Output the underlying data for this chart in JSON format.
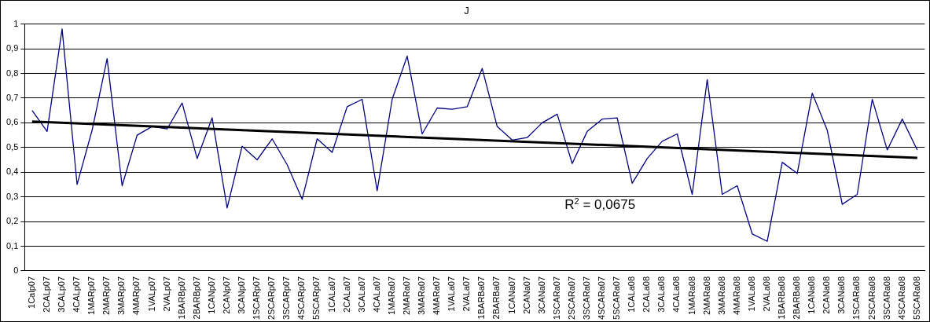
{
  "chart_data": {
    "type": "line",
    "title": "J",
    "categories": [
      "1Calp07",
      "2CALp07",
      "3CALp07",
      "4CALp07",
      "1MARp07",
      "2MARp07",
      "3MARp07",
      "4MARp07",
      "1VALp07",
      "2VALp07",
      "1BARBp07",
      "2BARBp07",
      "1CANp07",
      "2CANp07",
      "3CANp07",
      "1SCARp07",
      "2SCARp07",
      "3SCARp07",
      "4SCARp07",
      "5SCARp07",
      "1CALa07",
      "2CALa07",
      "3CALa07",
      "4CALa07",
      "1MARa07",
      "2MARa07",
      "3MARa07",
      "4MARa07",
      "1VALa07",
      "2VALa07",
      "1BARBa07",
      "2BARBa07",
      "1CANa07",
      "2CANa07",
      "3CANa07",
      "1SCARa07",
      "2SCARa07",
      "3SCARa07",
      "4SCARa07",
      "5SCARa07",
      "1CALa08",
      "2CALa08",
      "3CALa08",
      "4CALa08",
      "1MARa08",
      "2MARa08",
      "3MARa08",
      "4MARa08",
      "1VALa08",
      "2VALa08",
      "1BARBa08",
      "2BARBa08",
      "1CANa08",
      "2CANa08",
      "3CANa08",
      "1SCARa08",
      "2SCARa08",
      "3SCARa08",
      "4SCARa08",
      "5SCARa08"
    ],
    "series": [
      {
        "color": "#000080",
        "values": [
          0.65,
          0.565,
          0.98,
          0.35,
          0.57,
          0.86,
          0.345,
          0.55,
          0.585,
          0.575,
          0.68,
          0.455,
          0.62,
          0.255,
          0.505,
          0.45,
          0.535,
          0.43,
          0.29,
          0.535,
          0.48,
          0.665,
          0.695,
          0.325,
          0.695,
          0.87,
          0.555,
          0.66,
          0.655,
          0.665,
          0.82,
          0.585,
          0.53,
          0.54,
          0.6,
          0.635,
          0.435,
          0.565,
          0.615,
          0.62,
          0.355,
          0.455,
          0.525,
          0.555,
          0.31,
          0.775,
          0.31,
          0.345,
          0.15,
          0.12,
          0.44,
          0.395,
          0.72,
          0.57,
          0.27,
          0.31,
          0.695,
          0.49,
          0.615,
          0.49
        ]
      },
      {
        "type": "line",
        "color": "#000000",
        "values": [
          0.605,
          null,
          null,
          null,
          null,
          null,
          null,
          null,
          null,
          null,
          null,
          null,
          null,
          null,
          null,
          null,
          null,
          null,
          null,
          null,
          null,
          null,
          null,
          null,
          null,
          null,
          null,
          null,
          null,
          null,
          null,
          null,
          null,
          null,
          null,
          null,
          null,
          null,
          null,
          null,
          null,
          null,
          null,
          null,
          null,
          null,
          null,
          null,
          null,
          null,
          null,
          null,
          null,
          null,
          null,
          null,
          null,
          null,
          null,
          0.458
        ]
      }
    ],
    "ylim": [
      0,
      1
    ],
    "yticks": [
      0,
      {
        "value": 0.1,
        "label": "0,1"
      },
      {
        "value": 0.2,
        "label": "0,2"
      },
      {
        "value": 0.3,
        "label": "0,3"
      },
      {
        "value": 0.4,
        "label": "0,4"
      },
      {
        "value": 0.5,
        "label": "0,5"
      },
      {
        "value": 0.6,
        "label": "0,6"
      },
      {
        "value": 0.7,
        "label": "0,7"
      },
      {
        "value": 0.8,
        "label": "0,8"
      },
      {
        "value": 0.9,
        "label": "0,9"
      },
      1
    ],
    "grid": "y",
    "legend": false,
    "marker": "none",
    "line_style": "solid",
    "annotations": [
      "R$^{2}$ = 0,0675"
    ]
  }
}
